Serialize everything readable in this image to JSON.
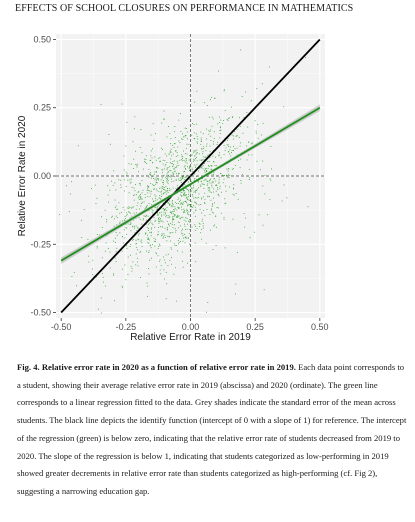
{
  "header": {
    "running_title": "EFFECTS OF SCHOOL CLOSURES ON PERFORMANCE IN MATHEMATICS"
  },
  "chart_data": {
    "type": "scatter",
    "title": "",
    "xlabel": "Relative Error Rate in 2019",
    "ylabel": "Relative Error Rate in 2020",
    "xlim": [
      -0.52,
      0.52
    ],
    "ylim": [
      -0.52,
      0.52
    ],
    "xticks": [
      -0.5,
      -0.25,
      0.0,
      0.25,
      0.5
    ],
    "yticks": [
      -0.5,
      -0.25,
      0.0,
      0.25,
      0.5
    ],
    "xtick_labels": [
      "-0.50",
      "-0.25",
      "0.00",
      "0.25",
      "0.50"
    ],
    "ytick_labels": [
      "-0.50",
      "-0.25",
      "0.00",
      "0.25",
      "0.50"
    ],
    "grid": true,
    "background": "#f2f2f2",
    "point_color": "#1e9e1e",
    "point_cloud": {
      "center": [
        -0.05,
        -0.06
      ],
      "spread": [
        0.13,
        0.11
      ],
      "approx_count": 1500
    },
    "reference_lines": [
      {
        "kind": "identity",
        "intercept": 0,
        "slope": 1,
        "color": "#000000"
      },
      {
        "kind": "dashed-zero",
        "x": 0,
        "y": 0,
        "color": "#444444"
      }
    ],
    "regression": {
      "x": [
        -0.5,
        0.5
      ],
      "y": [
        -0.31,
        0.25
      ],
      "ci_halfwidth_ends": 0.012,
      "color": "#1f8f1f",
      "band_color": "#bdbdbd"
    }
  },
  "caption": {
    "figure_label": "Fig. 4. Relative error rate in 2020 as a function of relative error rate in 2019.",
    "body": " Each data point corresponds to a student, showing their average relative error rate in 2019 (abscissa) and 2020 (ordinate). The green line corresponds to a linear regression fitted to the data. Grey shades indicate the standard error of the mean across students. The black line depicts the identify function (intercept of 0 with a slope of 1) for reference. The intercept of the regression (green) is below zero, indicating that the relative error rate of students decreased from 2019 to 2020. The slope of the regression is below 1, indicating that students categorized as low-performing in 2019 showed greater decrements in relative error rate than students categorized as high-performing (cf. Fig 2), suggesting a narrowing education gap."
  }
}
